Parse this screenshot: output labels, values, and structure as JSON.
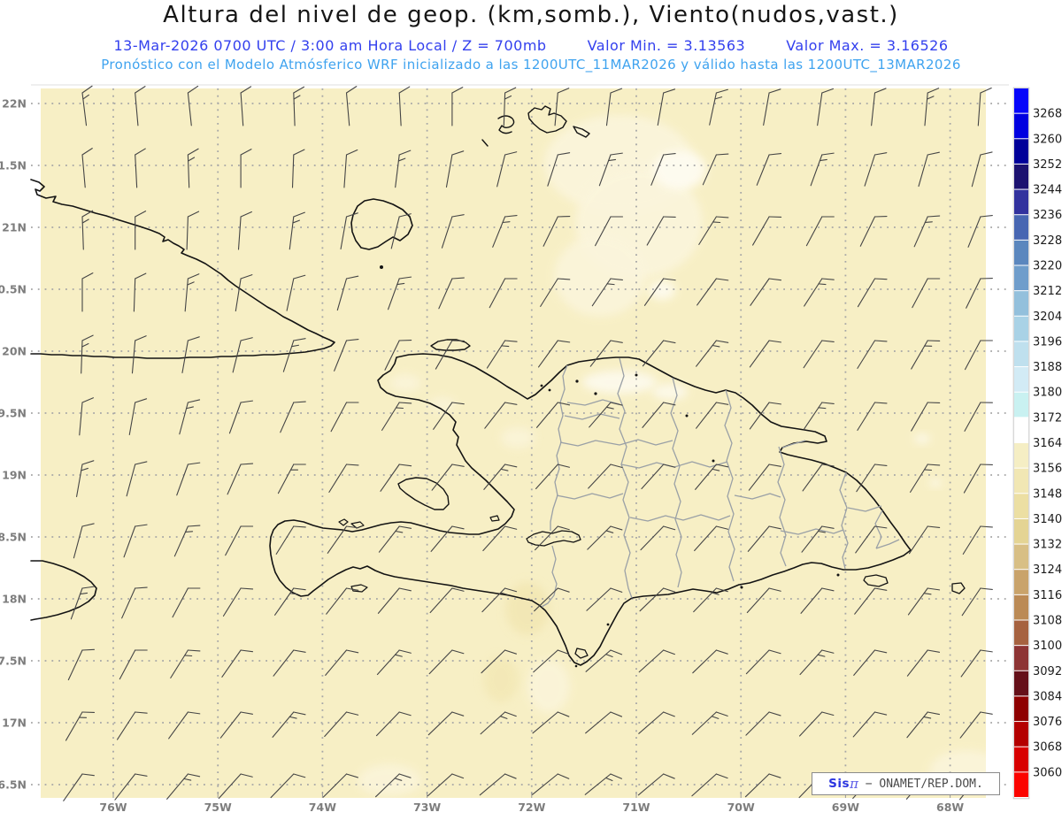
{
  "header": {
    "title": "Altura del nivel de geop. (km,somb.), Viento(nudos,vast.)",
    "line2_left": "13-Mar-2026  0700 UTC / 3:00 am Hora Local / Z = 700mb",
    "line2_min": "Valor Min. = 3.13563",
    "line2_max": "Valor Max. = 3.16526",
    "line3": "Pronóstico con el Modelo Atmósferico WRF inicializado a las 1200UTC_11MAR2026 y válido hasta las  1200UTC_13MAR2026",
    "title_color": "#161616",
    "line2_color": "#3340ee",
    "line3_color": "#3fa3ef"
  },
  "map": {
    "background": "#f7efc5",
    "lat_labels": [
      "22N",
      "1.5N",
      "21N",
      "0.5N",
      "20N",
      "9.5N",
      "19N",
      "8.5N",
      "18N",
      "7.5N",
      "17N",
      "6.5N"
    ],
    "lon_labels": [
      "76W",
      "75W",
      "74W",
      "73W",
      "72W",
      "71W",
      "70W",
      "69W",
      "68W"
    ],
    "gridline_color": "#a6a6a6",
    "axis_label_color": "#7d7d7d",
    "coastline_color": "#131313",
    "province_color": "#9aa0a6",
    "barb_color": "#454545"
  },
  "colorbar": {
    "tick_labels": [
      "3268",
      "3260",
      "3252",
      "3244",
      "3236",
      "3228",
      "3220",
      "3212",
      "3204",
      "3196",
      "3188",
      "3180",
      "3172",
      "3164",
      "3156",
      "3148",
      "3140",
      "3132",
      "3124",
      "3116",
      "3108",
      "3100",
      "3092",
      "3084",
      "3076",
      "3068",
      "3060"
    ],
    "colors": [
      "#0505fa",
      "#0000e0",
      "#000099",
      "#1c1270",
      "#32329e",
      "#4766b2",
      "#5b87be",
      "#6f9dcb",
      "#93c0dc",
      "#a9d2e6",
      "#bfe0ee",
      "#d2ebf5",
      "#c9f1f1",
      "#ffffff",
      "#f5eec4",
      "#f1e7b4",
      "#ecdfa3",
      "#e4d494",
      "#d8bf85",
      "#c9a36b",
      "#bb8a55",
      "#a66240",
      "#8d3434",
      "#651019",
      "#8e0000",
      "#b40000",
      "#d80000",
      "#fb0400"
    ],
    "label_color": "#1c1c1c"
  },
  "watermark": {
    "sis": "Sis",
    "pi": "π",
    "org": " − ONAMET/REP.DOM."
  },
  "wind": {
    "angles": [
      [
        97,
        95,
        96,
        94,
        92,
        95,
        93,
        90,
        88,
        85,
        83,
        80,
        78,
        80,
        82,
        84,
        85,
        86
      ],
      [
        95,
        93,
        92,
        90,
        88,
        86,
        83,
        80,
        76,
        72,
        70,
        68,
        66,
        68,
        70,
        72,
        74,
        75
      ],
      [
        92,
        90,
        88,
        86,
        83,
        80,
        76,
        72,
        68,
        64,
        62,
        60,
        58,
        60,
        62,
        64,
        66,
        68
      ],
      [
        90,
        88,
        85,
        81,
        78,
        74,
        70,
        66,
        62,
        58,
        56,
        55,
        54,
        55,
        57,
        59,
        62,
        64
      ],
      [
        88,
        85,
        80,
        76,
        72,
        68,
        64,
        60,
        57,
        54,
        52,
        51,
        52,
        54,
        56,
        58,
        60,
        62
      ],
      [
        85,
        80,
        75,
        70,
        66,
        62,
        58,
        55,
        52,
        50,
        49,
        50,
        52,
        54,
        56,
        58,
        60,
        61
      ],
      [
        80,
        75,
        70,
        66,
        62,
        58,
        55,
        52,
        50,
        48,
        47,
        48,
        50,
        52,
        54,
        56,
        58,
        60
      ],
      [
        75,
        70,
        66,
        62,
        58,
        55,
        52,
        50,
        48,
        46,
        45,
        46,
        48,
        50,
        52,
        54,
        56,
        58
      ],
      [
        70,
        66,
        62,
        58,
        55,
        52,
        50,
        48,
        46,
        44,
        43,
        44,
        46,
        48,
        50,
        52,
        54,
        56
      ],
      [
        65,
        62,
        58,
        55,
        52,
        50,
        48,
        46,
        44,
        42,
        41,
        42,
        44,
        46,
        48,
        50,
        52,
        54
      ],
      [
        60,
        57,
        54,
        52,
        50,
        48,
        46,
        44,
        42,
        40,
        40,
        41,
        43,
        45,
        47,
        49,
        51,
        52
      ],
      [
        55,
        52,
        50,
        48,
        46,
        45,
        44,
        42,
        40,
        39,
        39,
        40,
        42,
        44,
        46,
        48,
        50,
        51
      ]
    ]
  }
}
